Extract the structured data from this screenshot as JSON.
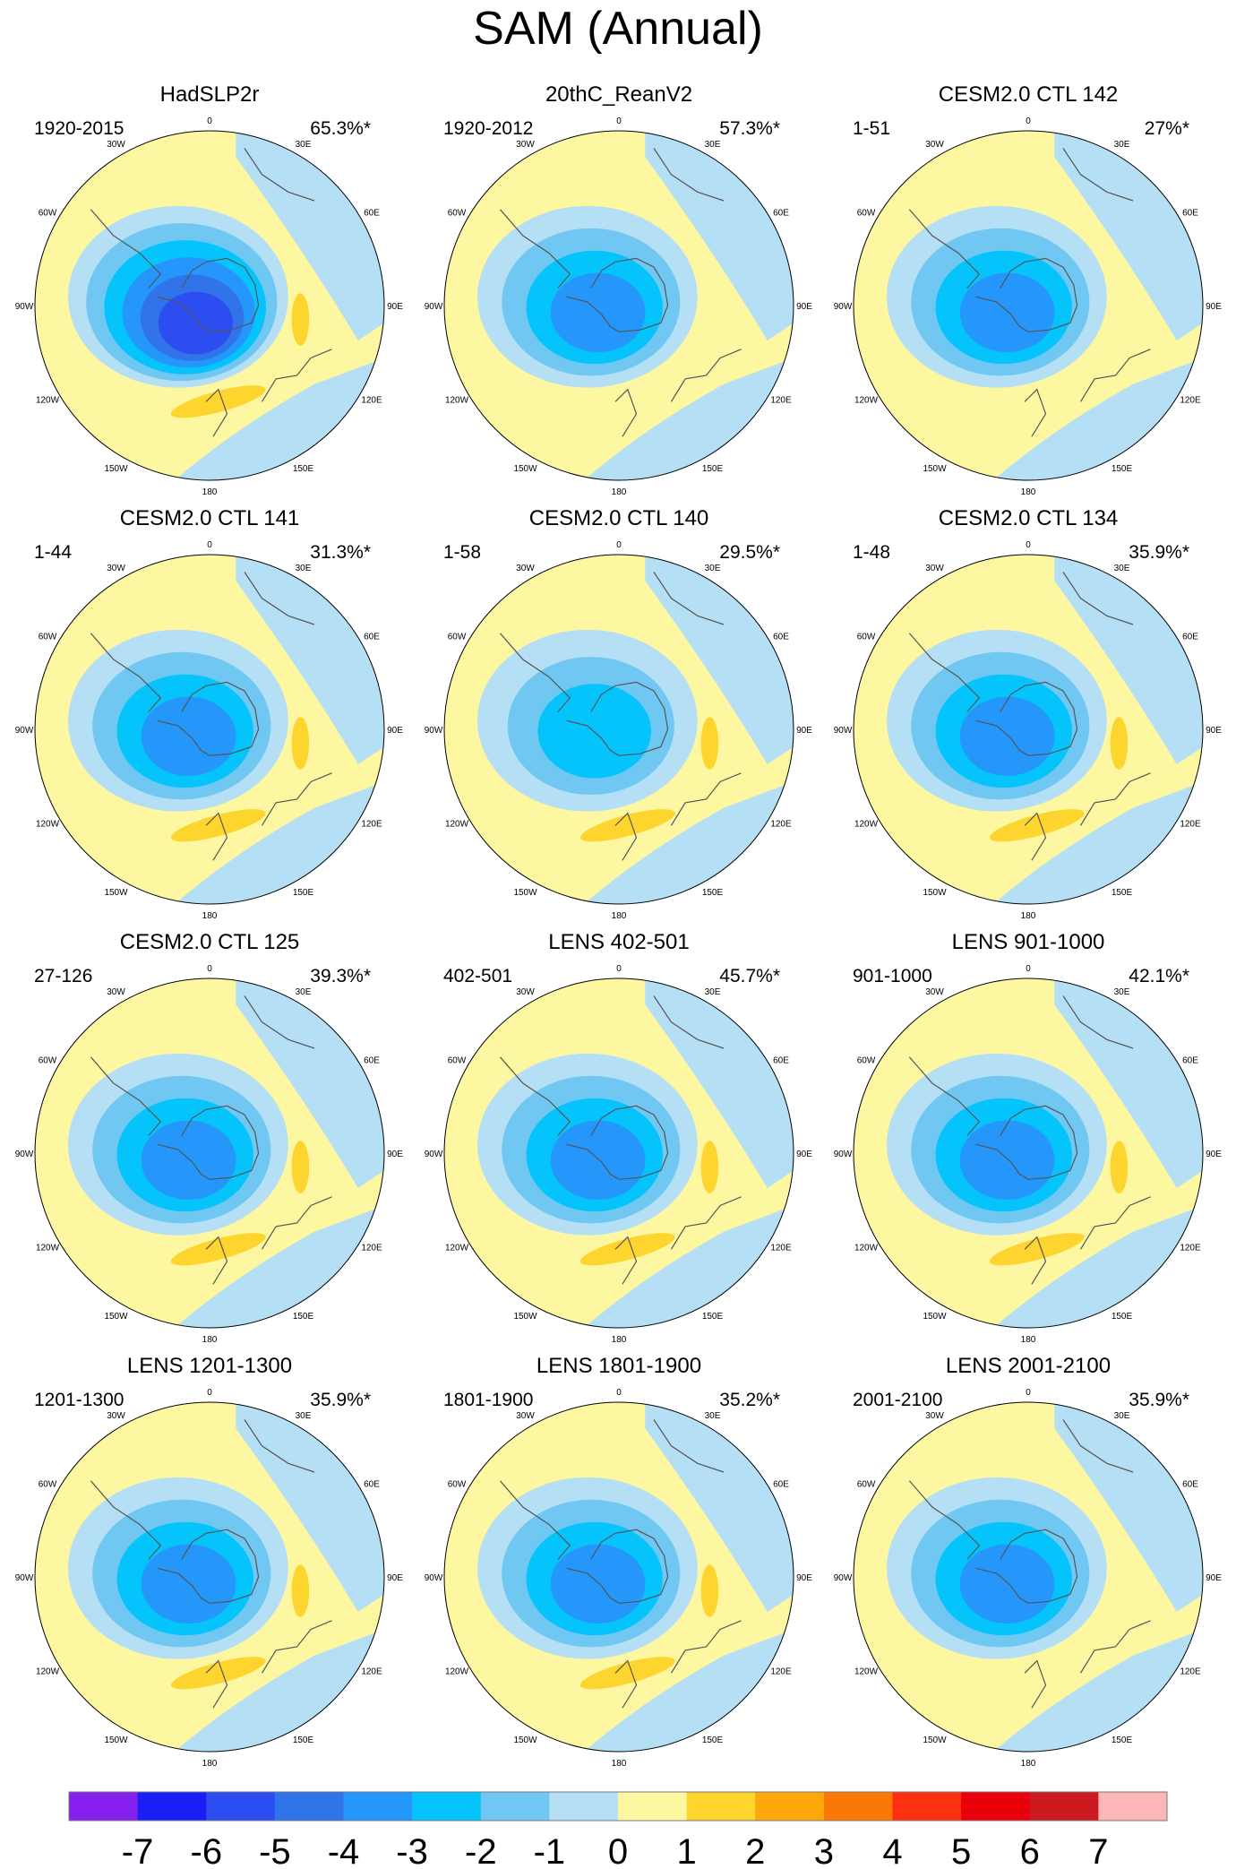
{
  "chart_data": {
    "type": "polar-contour-map",
    "title": "SAM (Annual)",
    "projection": "south-polar stereographic",
    "longitude_labels": [
      "0",
      "30E",
      "60E",
      "90E",
      "120E",
      "150E",
      "180",
      "150W",
      "120W",
      "90W",
      "60W",
      "30W"
    ],
    "colorbar": {
      "labels": [
        "-7",
        "-6",
        "-5",
        "-4",
        "-3",
        "-2",
        "-1",
        "0",
        "1",
        "2",
        "3",
        "4",
        "5",
        "6",
        "7"
      ],
      "colors": [
        "#8620ee",
        "#1a1ff9",
        "#2c4ef0",
        "#3174ea",
        "#2596fa",
        "#05c3fb",
        "#70c8f2",
        "#b5dff5",
        "#fdf7a2",
        "#fed52e",
        "#fca80b",
        "#fb7808",
        "#fd3010",
        "#e9000b",
        "#cd1a20",
        "#feb7b7"
      ]
    },
    "panels": [
      {
        "title": "HadSLP2r",
        "period": "1920-2015",
        "variance": "65.3%*",
        "min_value": -5,
        "max_value": 2
      },
      {
        "title": "20thC_ReanV2",
        "period": "1920-2012",
        "variance": "57.3%*",
        "min_value": -3,
        "max_value": 0
      },
      {
        "title": "CESM2.0 CTL 142",
        "period": "1-51",
        "variance": "27%*",
        "min_value": -3,
        "max_value": 0
      },
      {
        "title": "CESM2.0 CTL 141",
        "period": "1-44",
        "variance": "31.3%*",
        "min_value": -3,
        "max_value": 2
      },
      {
        "title": "CESM2.0 CTL 140",
        "period": "1-58",
        "variance": "29.5%*",
        "min_value": -2,
        "max_value": 2
      },
      {
        "title": "CESM2.0 CTL 134",
        "period": "1-48",
        "variance": "35.9%*",
        "min_value": -3,
        "max_value": 2
      },
      {
        "title": "CESM2.0 CTL 125",
        "period": "27-126",
        "variance": "39.3%*",
        "min_value": -3,
        "max_value": 2
      },
      {
        "title": "LENS 402-501",
        "period": "402-501",
        "variance": "45.7%*",
        "min_value": -3,
        "max_value": 2
      },
      {
        "title": "LENS 901-1000",
        "period": "901-1000",
        "variance": "42.1%*",
        "min_value": -3,
        "max_value": 2
      },
      {
        "title": "LENS 1201-1300",
        "period": "1201-1300",
        "variance": "35.9%*",
        "min_value": -3,
        "max_value": 2
      },
      {
        "title": "LENS 1801-1900",
        "period": "1801-1900",
        "variance": "35.2%*",
        "min_value": -3,
        "max_value": 2
      },
      {
        "title": "LENS 2001-2100",
        "period": "2001-2100",
        "variance": "35.9%*",
        "min_value": -3,
        "max_value": 0
      }
    ]
  }
}
